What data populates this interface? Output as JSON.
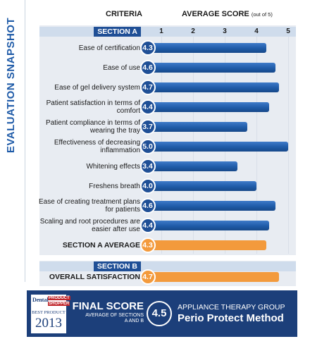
{
  "chart_data": {
    "type": "bar",
    "orientation": "horizontal",
    "title": "EVALUATION SNAPSHOT",
    "category_header": "CRITERIA",
    "value_header": "AVERAGE SCORE",
    "value_header_note": "(out of 5)",
    "xlim": [
      0.5,
      5.1
    ],
    "xticks": [
      1,
      2,
      3,
      4,
      5
    ],
    "grid": true,
    "sections": [
      {
        "name": "SECTION A",
        "color": "#1f5ba8",
        "categories": [
          "Ease of certification",
          "Ease of use",
          "Ease of gel delivery system",
          "Patient satisfaction in terms of comfort",
          "Patient compliance in terms of wearing the tray",
          "Effectiveness of decreasing inflammation",
          "Whitening effects",
          "Freshens breath",
          "Ease of creating treatment plans for patients",
          "Scaling and root procedures are easier after use"
        ],
        "values": [
          4.3,
          4.6,
          4.7,
          4.4,
          3.7,
          5.0,
          3.4,
          4.0,
          4.6,
          4.4
        ],
        "value_labels": [
          "4.3",
          "4.6",
          "4.7",
          "4.4",
          "3.7",
          "5.0",
          "3.4",
          "4.0",
          "4.6",
          "4.4"
        ],
        "summary": {
          "label": "SECTION A AVERAGE",
          "value": 4.3,
          "value_label": "4.3",
          "color": "#f39a3c"
        }
      },
      {
        "name": "SECTION B",
        "color": "#1f5ba8",
        "categories": [],
        "values": [],
        "value_labels": [],
        "summary": {
          "label": "OVERALL SATISFACTION",
          "value": 4.7,
          "value_label": "4.7",
          "color": "#f39a3c"
        }
      }
    ]
  },
  "final_score": {
    "label": "FINAL SCORE",
    "note": "AVERAGE OF SECTIONS A AND B",
    "value": 4.5,
    "company": "APPLIANCE THERAPY GROUP",
    "product": "Perio Protect Method"
  },
  "logo": {
    "brand": "Dental",
    "product": "PRODUCT",
    "shopper": "SHOPPER",
    "award": "BEST PRODUCT",
    "year": "2013"
  }
}
